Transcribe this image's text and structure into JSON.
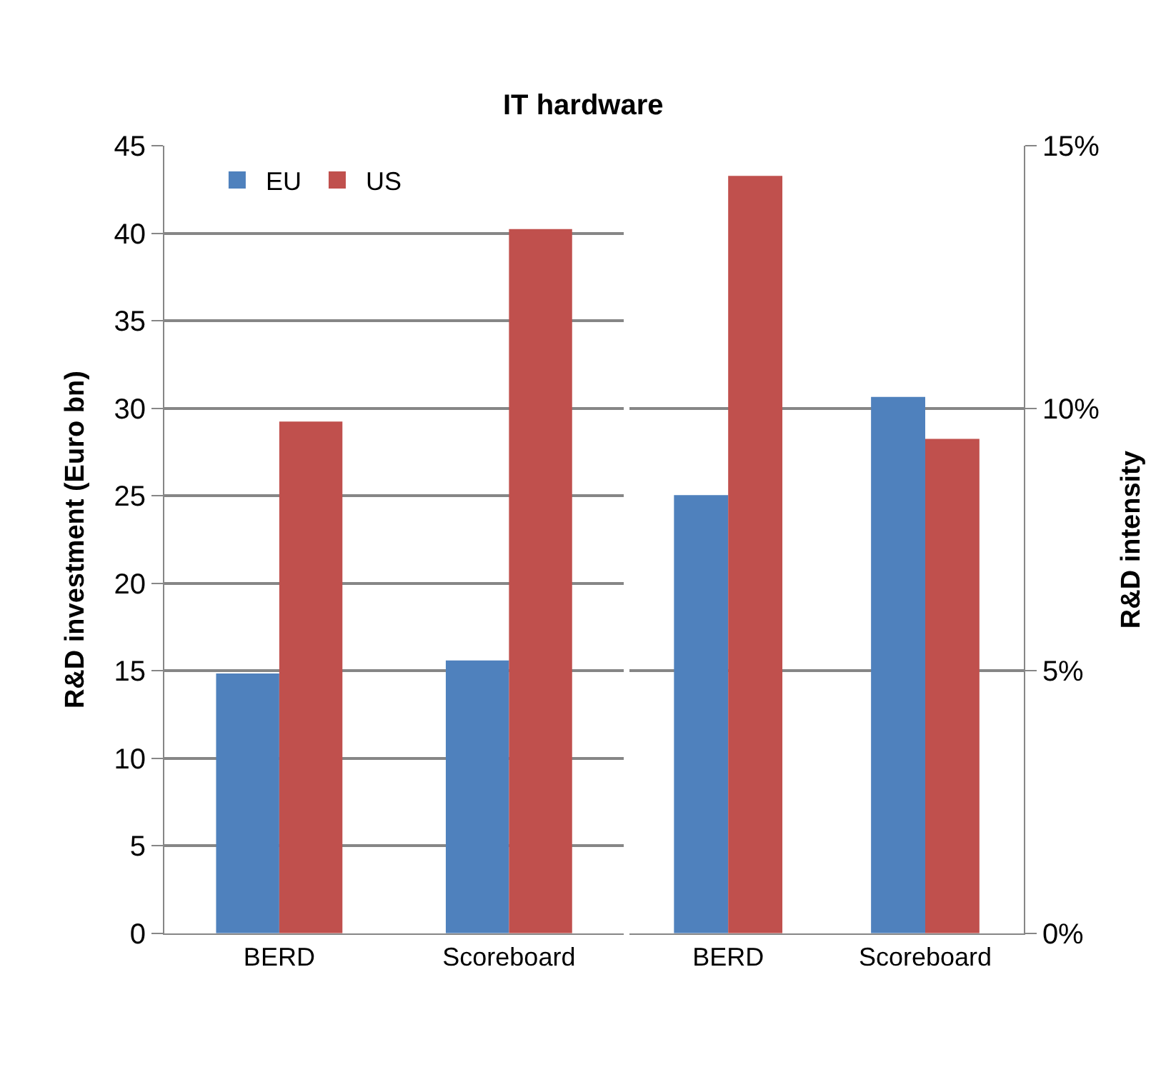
{
  "chart_data": [
    {
      "type": "bar",
      "title": "IT hardware",
      "ylabel": "R&D investment (Euro bn)",
      "categories": [
        "BERD",
        "Scoreboard"
      ],
      "series": [
        {
          "name": "EU",
          "color": "#4f81bd",
          "values": [
            14.85,
            15.6
          ]
        },
        {
          "name": "US",
          "color": "#c0504d",
          "values": [
            29.25,
            40.25
          ]
        }
      ],
      "ylim": [
        0,
        45
      ],
      "yticks": [
        0,
        5,
        10,
        15,
        20,
        25,
        30,
        35,
        40,
        45
      ],
      "grid": "y",
      "legend": "top left"
    },
    {
      "type": "bar",
      "ylabel": "R&D intensity",
      "categories": [
        "BERD",
        "Scoreboard"
      ],
      "series": [
        {
          "color": "#4f81bd",
          "values": [
            8.35,
            10.22
          ]
        },
        {
          "color": "#c0504d",
          "values": [
            14.43,
            9.42
          ]
        }
      ],
      "ylim": [
        0,
        15
      ],
      "yticks": [
        {
          "value": 0,
          "label": "0%"
        },
        {
          "value": 5,
          "label": "5%"
        },
        {
          "value": 10,
          "label": "10%"
        },
        {
          "value": 15,
          "label": "15%"
        }
      ],
      "grid": "y"
    }
  ]
}
